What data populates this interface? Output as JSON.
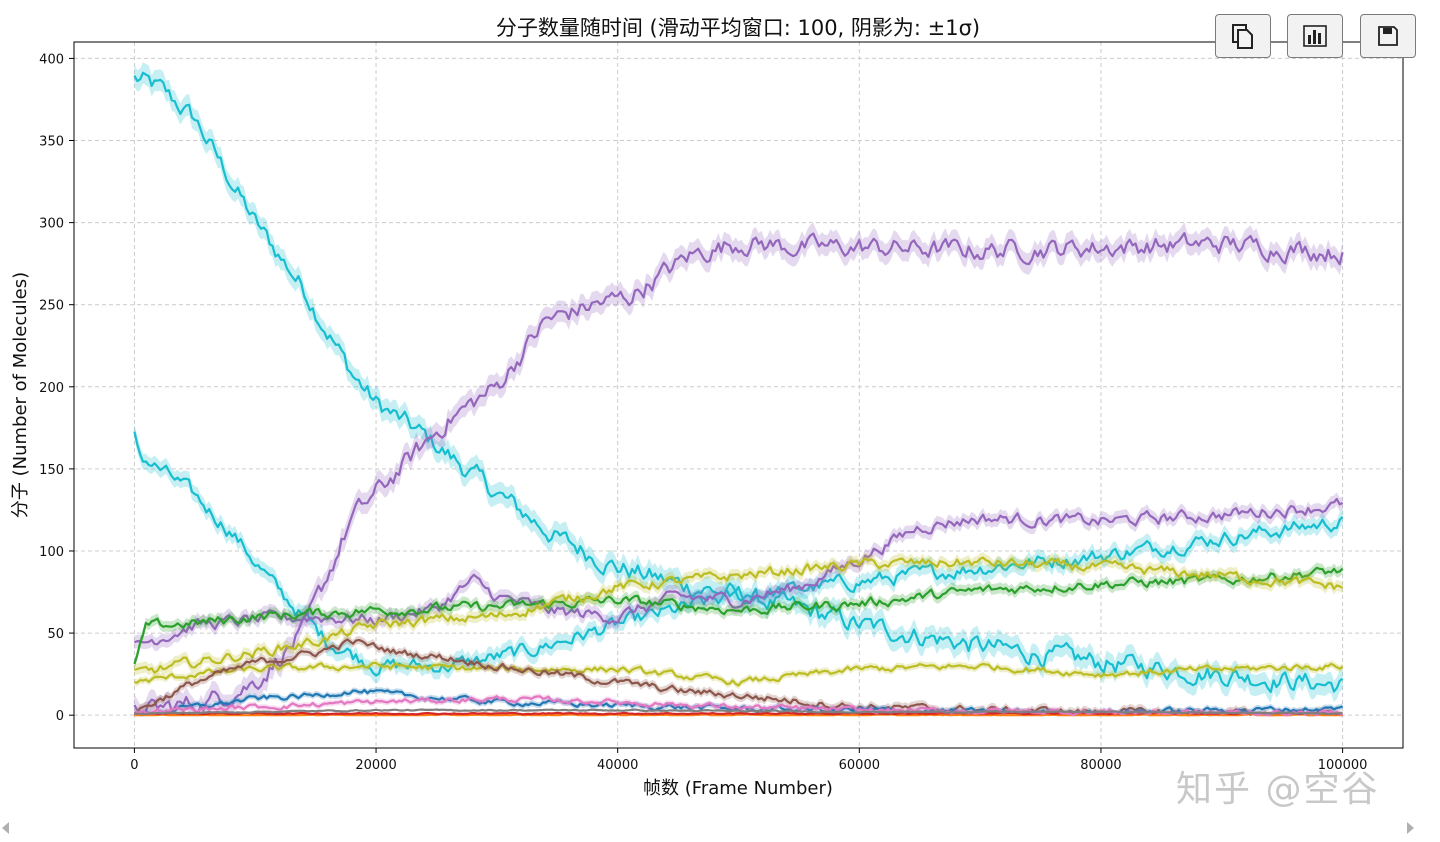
{
  "toolbar": {
    "copy_icon": "copy-icon",
    "chart_icon": "bar-chart-icon",
    "save_icon": "floppy-disk-icon"
  },
  "watermark": "知乎 @空谷",
  "chart_data": {
    "type": "line",
    "title": "分子数量随时间 (滑动平均窗口: 100, 阴影为: ±1σ)",
    "xlabel": "帧数 (Frame Number)",
    "ylabel": "分子 (Number of Molecules)",
    "xlim": [
      -5000,
      105000
    ],
    "ylim": [
      -20,
      410
    ],
    "xticks": [
      0,
      20000,
      40000,
      60000,
      80000,
      100000
    ],
    "yticks": [
      0,
      50,
      100,
      150,
      200,
      250,
      300,
      350,
      400
    ],
    "grid": true,
    "shaded_band": "±1σ",
    "series": [
      {
        "color": "#17becf",
        "x": [
          0,
          2000,
          5000,
          10000,
          14000,
          18000,
          20000,
          24000,
          30000,
          35000,
          40000,
          45000,
          50000,
          55000,
          60000,
          70000,
          80000,
          90000,
          100000
        ],
        "y": [
          388,
          382,
          363,
          300,
          260,
          208,
          190,
          170,
          135,
          108,
          90,
          80,
          73,
          65,
          55,
          42,
          32,
          25,
          18
        ]
      },
      {
        "color": "#17becf",
        "x": [
          0,
          500,
          4000,
          8000,
          12000,
          16000,
          20000,
          26000,
          32000,
          40000,
          48000,
          55000,
          62000,
          70000,
          80000,
          90000,
          100000
        ],
        "y": [
          170,
          158,
          140,
          112,
          75,
          45,
          30,
          30,
          38,
          55,
          70,
          77,
          83,
          90,
          97,
          108,
          118
        ]
      },
      {
        "color": "#9467bd",
        "x": [
          0,
          6000,
          10000,
          14000,
          18000,
          22000,
          26000,
          30000,
          34000,
          38000,
          41000,
          44000,
          46000,
          50000,
          55000,
          60000,
          70000,
          80000,
          90000,
          100000
        ],
        "y": [
          2,
          8,
          20,
          50,
          120,
          150,
          180,
          200,
          240,
          250,
          255,
          270,
          280,
          288,
          285,
          285,
          283,
          285,
          287,
          282
        ]
      },
      {
        "color": "#9467bd",
        "x": [
          0,
          5000,
          10000,
          15000,
          20000,
          25000,
          28000,
          30000,
          35000,
          40000,
          45000,
          50000,
          55000,
          60000,
          65000,
          70000,
          80000,
          90000,
          100000
        ],
        "y": [
          42,
          55,
          58,
          60,
          58,
          65,
          82,
          72,
          63,
          60,
          72,
          70,
          78,
          95,
          115,
          120,
          118,
          122,
          128
        ]
      },
      {
        "color": "#2ca02c",
        "x": [
          0,
          1000,
          5000,
          10000,
          20000,
          30000,
          40000,
          50000,
          60000,
          70000,
          80000,
          90000,
          100000
        ],
        "y": [
          30,
          54,
          56,
          60,
          64,
          66,
          70,
          64,
          68,
          76,
          80,
          82,
          88
        ]
      },
      {
        "color": "#bcbd22",
        "x": [
          0,
          5000,
          10000,
          15000,
          20000,
          25000,
          30000,
          40000,
          50000,
          60000,
          70000,
          80000,
          90000,
          100000
        ],
        "y": [
          25,
          32,
          38,
          45,
          55,
          58,
          60,
          78,
          85,
          92,
          93,
          90,
          85,
          78
        ]
      },
      {
        "color": "#bcbd22",
        "x": [
          0,
          5000,
          10000,
          20000,
          30000,
          40000,
          50000,
          60000,
          70000,
          80000,
          90000,
          100000
        ],
        "y": [
          20,
          25,
          28,
          30,
          28,
          28,
          20,
          28,
          30,
          25,
          28,
          30
        ]
      },
      {
        "color": "#8c564b",
        "x": [
          0,
          5000,
          10000,
          15000,
          18000,
          22000,
          26000,
          30000,
          35000,
          40000,
          45000,
          50000,
          60000,
          70000,
          80000,
          90000,
          100000
        ],
        "y": [
          2,
          20,
          32,
          38,
          45,
          38,
          35,
          30,
          25,
          20,
          15,
          12,
          5,
          3,
          2,
          1,
          1
        ]
      },
      {
        "color": "#1f77b4",
        "x": [
          0,
          5000,
          10000,
          15000,
          18000,
          22000,
          30000,
          40000,
          50000,
          60000,
          70000,
          80000,
          90000,
          100000
        ],
        "y": [
          0,
          5,
          10,
          12,
          15,
          12,
          8,
          6,
          4,
          3,
          2,
          2,
          3,
          4
        ]
      },
      {
        "color": "#ff7f0e",
        "x": [
          0,
          20000,
          40000,
          60000,
          80000,
          100000
        ],
        "y": [
          0,
          0,
          0,
          0,
          0,
          0
        ]
      },
      {
        "color": "#d62728",
        "x": [
          0,
          20000,
          40000,
          60000,
          80000,
          100000
        ],
        "y": [
          1,
          1,
          1,
          1,
          1,
          1
        ]
      },
      {
        "color": "#e377c2",
        "x": [
          0,
          10000,
          20000,
          30000,
          40000,
          50000,
          60000,
          80000,
          100000
        ],
        "y": [
          2,
          5,
          8,
          10,
          8,
          5,
          3,
          2,
          1
        ]
      },
      {
        "color": "#7f7f7f",
        "x": [
          0,
          10000,
          20000,
          40000,
          60000,
          80000,
          100000
        ],
        "y": [
          1,
          2,
          3,
          3,
          2,
          2,
          1
        ]
      }
    ]
  }
}
